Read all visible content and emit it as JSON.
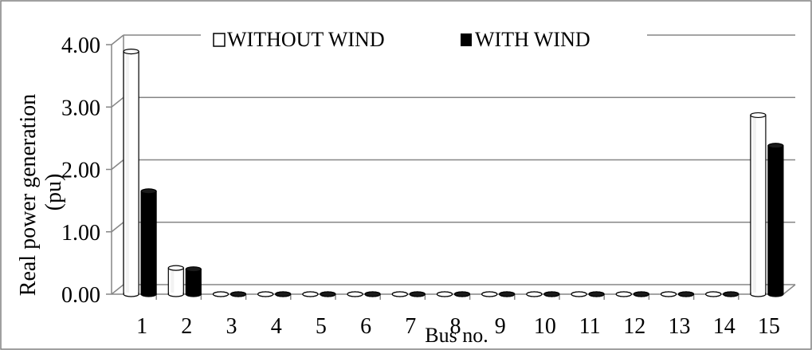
{
  "chart_data": {
    "type": "bar",
    "title": "",
    "xlabel": "Bus no.",
    "ylabel": "Real power generation (pu)",
    "ylim": [
      0,
      4
    ],
    "yticks": [
      "0.00",
      "1.00",
      "2.00",
      "3.00",
      "4.00"
    ],
    "categories": [
      "1",
      "2",
      "3",
      "4",
      "5",
      "6",
      "7",
      "8",
      "9",
      "10",
      "11",
      "12",
      "13",
      "14",
      "15"
    ],
    "grid": true,
    "legend_position": "top",
    "series": [
      {
        "name": "WITHOUT WIND",
        "color": "#ffffff",
        "values": [
          3.89,
          0.42,
          0,
          0,
          0,
          0,
          0,
          0,
          0,
          0,
          0,
          0,
          0,
          0,
          2.87
        ]
      },
      {
        "name": "WITH WIND",
        "color": "#000000",
        "values": [
          1.65,
          0.4,
          0,
          0,
          0,
          0,
          0,
          0,
          0,
          0,
          0,
          0,
          0,
          0,
          2.38
        ]
      }
    ]
  }
}
